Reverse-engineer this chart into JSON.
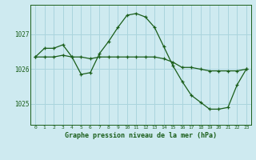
{
  "title": "Graphe pression niveau de la mer (hPa)",
  "background_color": "#ceeaf0",
  "grid_color": "#aad4dd",
  "line_color": "#1a5e1a",
  "xlim": [
    -0.5,
    23.5
  ],
  "ylim": [
    1024.4,
    1027.85
  ],
  "yticks": [
    1025,
    1026,
    1027
  ],
  "xticks": [
    0,
    1,
    2,
    3,
    4,
    5,
    6,
    7,
    8,
    9,
    10,
    11,
    12,
    13,
    14,
    15,
    16,
    17,
    18,
    19,
    20,
    21,
    22,
    23
  ],
  "series1_x": [
    0,
    1,
    2,
    3,
    4,
    5,
    6,
    7,
    8,
    9,
    10,
    11,
    12,
    13,
    14,
    15,
    16,
    17,
    18,
    19,
    20,
    21,
    22,
    23
  ],
  "series1_y": [
    1026.35,
    1026.6,
    1026.6,
    1026.7,
    1026.35,
    1025.85,
    1025.9,
    1026.45,
    1026.8,
    1027.2,
    1027.55,
    1027.6,
    1027.5,
    1027.2,
    1026.65,
    1026.1,
    1025.65,
    1025.25,
    1025.05,
    1024.85,
    1024.85,
    1024.9,
    1025.55,
    1026.0
  ],
  "series2_x": [
    0,
    1,
    2,
    3,
    4,
    5,
    6,
    7,
    8,
    9,
    10,
    11,
    12,
    13,
    14,
    15,
    16,
    17,
    18,
    19,
    20,
    21,
    22,
    23
  ],
  "series2_y": [
    1026.35,
    1026.35,
    1026.35,
    1026.4,
    1026.35,
    1026.35,
    1026.3,
    1026.35,
    1026.35,
    1026.35,
    1026.35,
    1026.35,
    1026.35,
    1026.35,
    1026.3,
    1026.2,
    1026.05,
    1026.05,
    1026.0,
    1025.95,
    1025.95,
    1025.95,
    1025.95,
    1026.0
  ]
}
